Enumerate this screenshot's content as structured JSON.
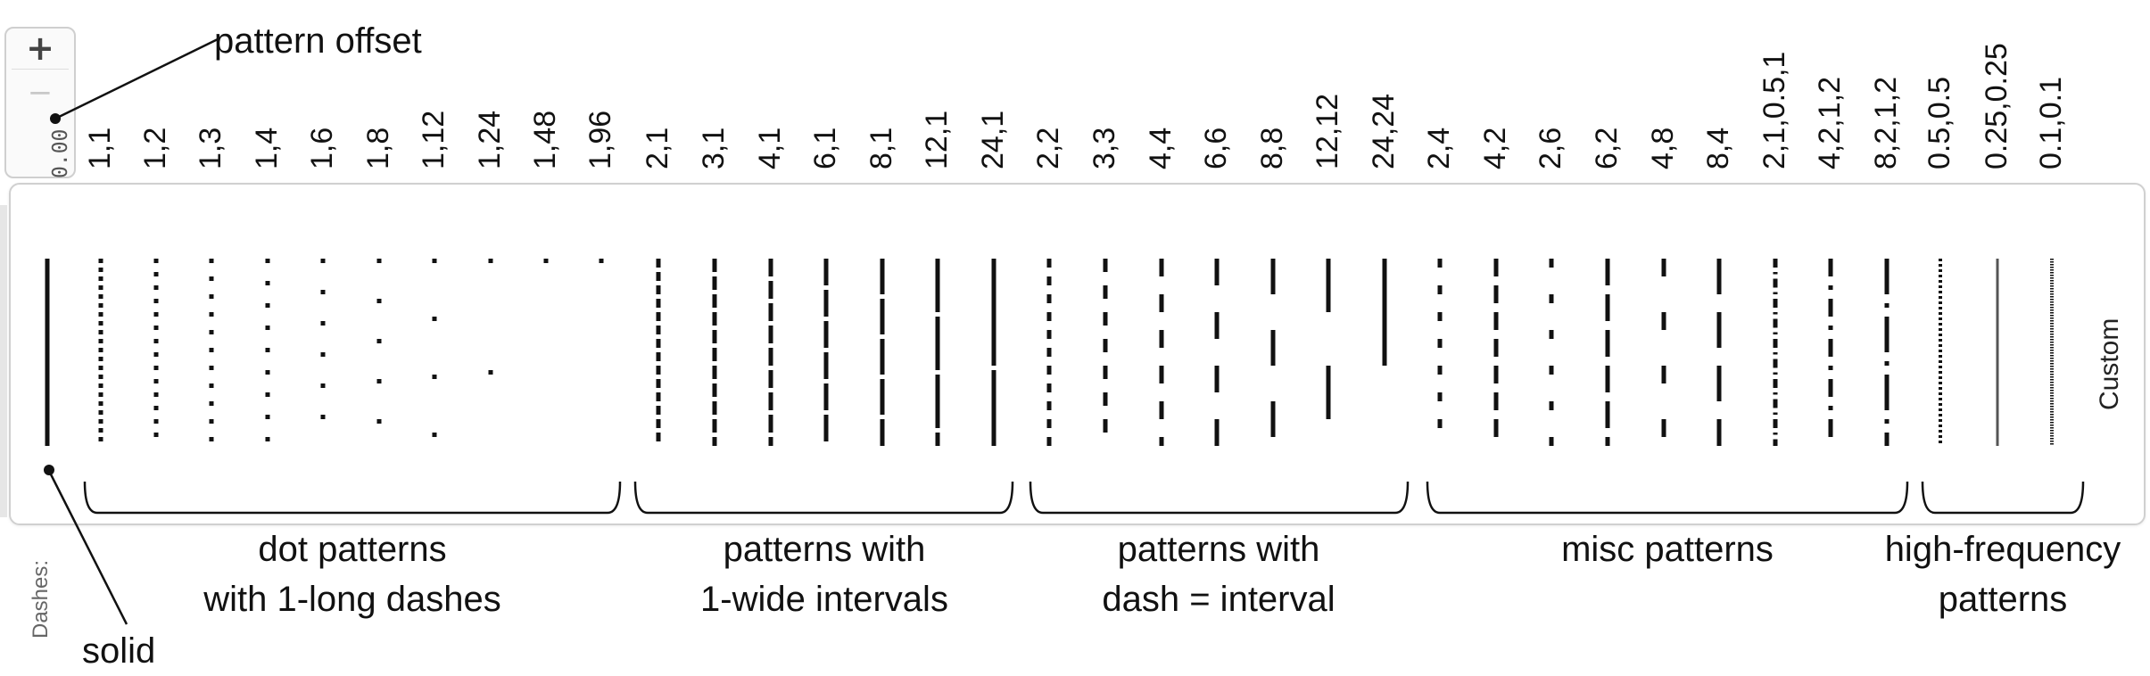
{
  "spinner": {
    "plus_label": "+",
    "minus_label": "−",
    "value": "0.00",
    "plus_icon": "plus-icon",
    "minus_icon": "minus-icon"
  },
  "custom_label": "Custom",
  "dashes_label": "Dashes:",
  "annotations": {
    "pattern_offset": "pattern offset",
    "solid": "solid"
  },
  "patterns": [
    "1,1",
    "1,2",
    "1,3",
    "1,4",
    "1,6",
    "1,8",
    "1,12",
    "1,24",
    "1,48",
    "1,96",
    "2,1",
    "3,1",
    "4,1",
    "6,1",
    "8,1",
    "12,1",
    "24,1",
    "2,2",
    "3,3",
    "4,4",
    "6,6",
    "8,8",
    "12,12",
    "24,24",
    "2,4",
    "4,2",
    "2,6",
    "6,2",
    "4,8",
    "8,4",
    "2,1,0.5,1",
    "4,2,1,2",
    "8,2,1,2",
    "0.5,0.5",
    "0.25,0.25",
    "0.1,0.1"
  ],
  "groups": [
    {
      "line1": "dot patterns",
      "line2": "with 1-long dashes"
    },
    {
      "line1": "patterns with",
      "line2": "1-wide intervals"
    },
    {
      "line1": "patterns with",
      "line2": "dash = interval"
    },
    {
      "line1": "misc patterns",
      "line2": ""
    },
    {
      "line1": "high-frequency",
      "line2": "patterns"
    }
  ],
  "colors": {
    "line": "#111111",
    "hf_line": "#555555",
    "panel_border": "#d0d0d0",
    "muted_text": "#666666"
  }
}
